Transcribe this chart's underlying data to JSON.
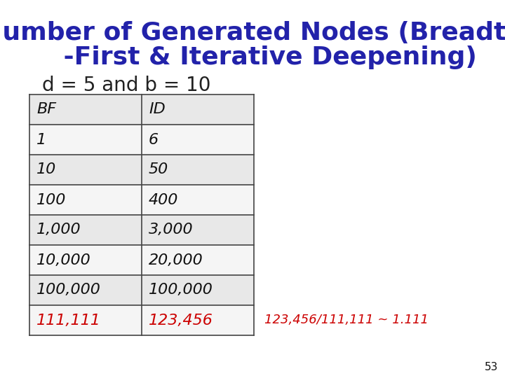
{
  "title_line1": "Number of Generated Nodes (Breadth",
  "title_line2": "    -First & Iterative Deepening)",
  "subtitle": "  d = 5 and b = 10",
  "title_color": "#2222aa",
  "subtitle_color": "#222222",
  "bg_color": "#ffffff",
  "table_headers": [
    "BF",
    "ID"
  ],
  "table_rows": [
    [
      "1",
      "6"
    ],
    [
      "10",
      "50"
    ],
    [
      "100",
      "400"
    ],
    [
      "1,000",
      "3,000"
    ],
    [
      "10,000",
      "20,000"
    ],
    [
      "100,000",
      "100,000"
    ],
    [
      "111,111",
      "123,456"
    ]
  ],
  "last_row_color": "#cc0000",
  "normal_row_color": "#111111",
  "header_color": "#111111",
  "annotation": "123,456/111,111 ~ 1.111",
  "annotation_color": "#cc0000",
  "page_number": "53",
  "page_number_color": "#111111",
  "cell_bg": "#e8e8e8",
  "cell_bg_last": "#ffffff"
}
